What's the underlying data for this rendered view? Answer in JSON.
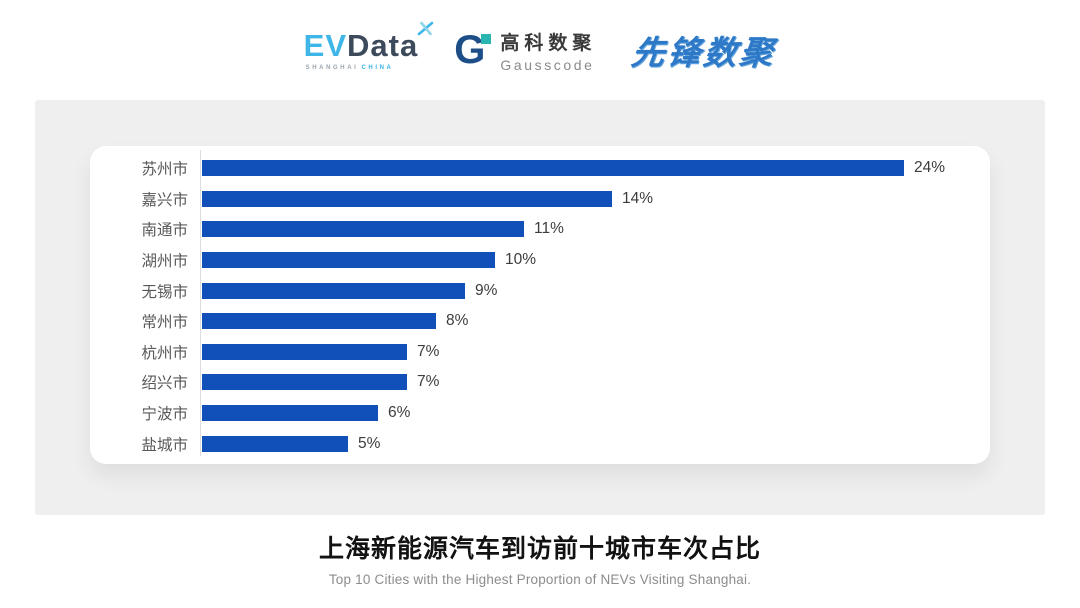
{
  "header": {
    "evdata_logo": {
      "part1": "EV",
      "part2": "Data",
      "sub1": "SHANGHAI",
      "sub2": "CHINA"
    },
    "gausscode_logo": {
      "icon_letter": "G",
      "cn": "高科数聚",
      "en": "Gausscode"
    },
    "pioneer_logo": {
      "text": "先锋数聚"
    }
  },
  "chart_data": {
    "type": "bar",
    "orientation": "horizontal",
    "categories": [
      "苏州市",
      "嘉兴市",
      "南通市",
      "湖州市",
      "无锡市",
      "常州市",
      "杭州市",
      "绍兴市",
      "宁波市",
      "盐城市"
    ],
    "values": [
      24,
      14,
      11,
      10,
      9,
      8,
      7,
      7,
      6,
      5
    ],
    "value_labels": [
      "24%",
      "14%",
      "11%",
      "10%",
      "9%",
      "8%",
      "7%",
      "7%",
      "6%",
      "5%"
    ],
    "xlim": [
      0,
      24
    ],
    "grid": false,
    "legend": false,
    "bar_color": "#1150b8",
    "axis_line_color": "#dcdcdc",
    "title": "上海新能源汽车到访前十城市车次占比",
    "subtitle": "Top 10 Cities with the Highest Proportion of  NEVs Visiting Shanghai."
  }
}
